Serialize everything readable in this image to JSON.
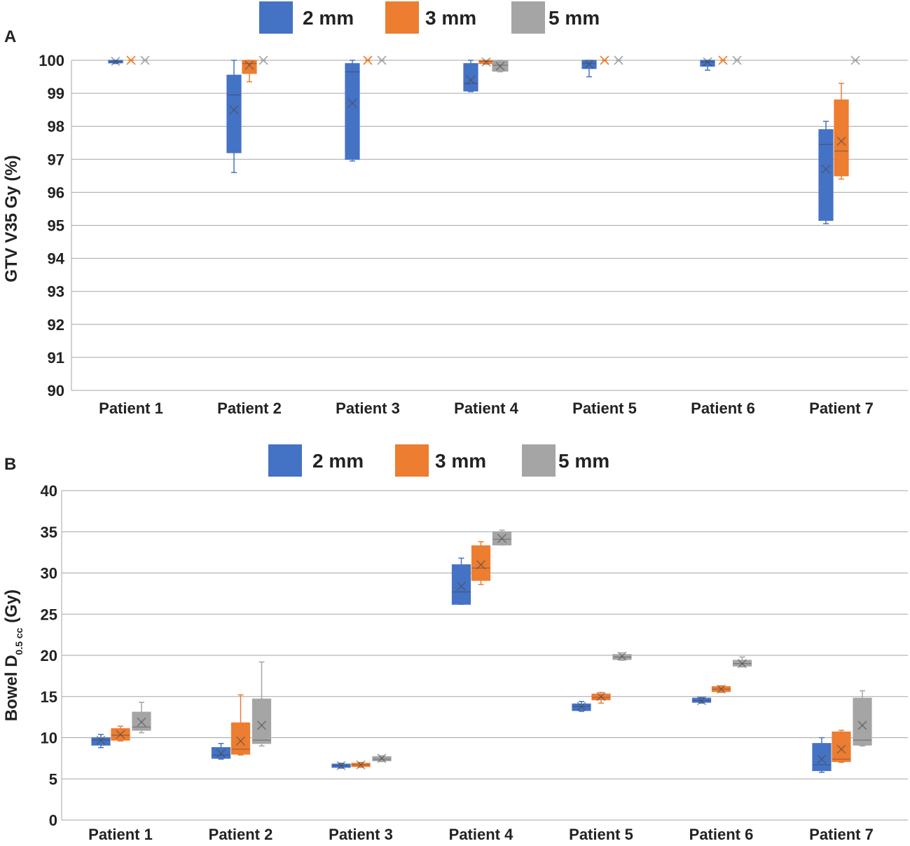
{
  "chart_data": [
    {
      "type": "box",
      "panel_label": "A",
      "ylabel": "GTV V35 Gy (%)",
      "xlabel": "",
      "ylim": [
        90,
        100
      ],
      "yticks": [
        90,
        91,
        92,
        93,
        94,
        95,
        96,
        97,
        98,
        99,
        100
      ],
      "grid": true,
      "legend_position": "top-center",
      "categories": [
        "Patient 1",
        "Patient 2",
        "Patient 3",
        "Patient 4",
        "Patient 5",
        "Patient 6",
        "Patient 7"
      ],
      "series": [
        {
          "name": "2 mm",
          "color": "#4472C4",
          "boxes": [
            {
              "min": 99.9,
              "q1": 99.92,
              "median": 99.96,
              "q3": 100.0,
              "max": 100.0,
              "mean": 99.97
            },
            {
              "min": 96.6,
              "q1": 97.2,
              "median": 98.95,
              "q3": 99.55,
              "max": 100.0,
              "mean": 98.5
            },
            {
              "min": 96.95,
              "q1": 97.0,
              "median": 99.65,
              "q3": 99.9,
              "max": 100.0,
              "mean": 98.7
            },
            {
              "min": 99.05,
              "q1": 99.07,
              "median": 99.3,
              "q3": 99.9,
              "max": 100.0,
              "mean": 99.4
            },
            {
              "min": 99.5,
              "q1": 99.75,
              "median": 99.9,
              "q3": 100.0,
              "max": 100.0,
              "mean": 99.88
            },
            {
              "min": 99.7,
              "q1": 99.82,
              "median": 99.95,
              "q3": 100.0,
              "max": 100.0,
              "mean": 99.95
            },
            {
              "min": 95.05,
              "q1": 95.15,
              "median": 97.45,
              "q3": 97.9,
              "max": 98.15,
              "mean": 96.7
            }
          ]
        },
        {
          "name": "3 mm",
          "color": "#ED7D31",
          "boxes": [
            {
              "min": 100.0,
              "q1": 100.0,
              "median": 100.0,
              "q3": 100.0,
              "max": 100.0,
              "mean": 100.0
            },
            {
              "min": 99.35,
              "q1": 99.6,
              "median": 99.9,
              "q3": 100.0,
              "max": 100.0,
              "mean": 99.85
            },
            {
              "min": 100.0,
              "q1": 100.0,
              "median": 100.0,
              "q3": 100.0,
              "max": 100.0,
              "mean": 100.0
            },
            {
              "min": 99.88,
              "q1": 99.9,
              "median": 99.97,
              "q3": 100.0,
              "max": 100.0,
              "mean": 99.95
            },
            {
              "min": 100.0,
              "q1": 100.0,
              "median": 100.0,
              "q3": 100.0,
              "max": 100.0,
              "mean": 100.0
            },
            {
              "min": 100.0,
              "q1": 100.0,
              "median": 100.0,
              "q3": 100.0,
              "max": 100.0,
              "mean": 100.0
            },
            {
              "min": 96.4,
              "q1": 96.5,
              "median": 97.25,
              "q3": 98.8,
              "max": 99.3,
              "mean": 97.55
            }
          ]
        },
        {
          "name": "5 mm",
          "color": "#A5A5A5",
          "boxes": [
            {
              "min": 100.0,
              "q1": 100.0,
              "median": 100.0,
              "q3": 100.0,
              "max": 100.0,
              "mean": 100.0
            },
            {
              "min": 100.0,
              "q1": 100.0,
              "median": 100.0,
              "q3": 100.0,
              "max": 100.0,
              "mean": 100.0
            },
            {
              "min": 100.0,
              "q1": 100.0,
              "median": 100.0,
              "q3": 100.0,
              "max": 100.0,
              "mean": 100.0
            },
            {
              "min": 99.65,
              "q1": 99.67,
              "median": 99.85,
              "q3": 99.98,
              "max": 100.0,
              "mean": 99.82
            },
            {
              "min": 100.0,
              "q1": 100.0,
              "median": 100.0,
              "q3": 100.0,
              "max": 100.0,
              "mean": 100.0
            },
            {
              "min": 100.0,
              "q1": 100.0,
              "median": 100.0,
              "q3": 100.0,
              "max": 100.0,
              "mean": 100.0
            },
            {
              "min": 100.0,
              "q1": 100.0,
              "median": 100.0,
              "q3": 100.0,
              "max": 100.0,
              "mean": 100.0
            }
          ]
        }
      ]
    },
    {
      "type": "box",
      "panel_label": "B",
      "ylabel_main": "Bowel D",
      "ylabel_sub": "0.5 cc",
      "ylabel_unit": " (Gy)",
      "xlabel": "",
      "ylim": [
        0,
        40
      ],
      "yticks": [
        0,
        5,
        10,
        15,
        20,
        25,
        30,
        35,
        40
      ],
      "grid": true,
      "legend_position": "top-center",
      "categories": [
        "Patient 1",
        "Patient 2",
        "Patient 3",
        "Patient 4",
        "Patient 5",
        "Patient 6",
        "Patient 7"
      ],
      "series": [
        {
          "name": "2 mm",
          "color": "#4472C4",
          "boxes": [
            {
              "min": 8.8,
              "q1": 9.1,
              "median": 9.7,
              "q3": 10.0,
              "max": 10.4,
              "mean": 9.7
            },
            {
              "min": 7.4,
              "q1": 7.5,
              "median": 7.9,
              "q3": 8.8,
              "max": 9.3,
              "mean": 8.1
            },
            {
              "min": 6.3,
              "q1": 6.4,
              "median": 6.6,
              "q3": 6.8,
              "max": 6.9,
              "mean": 6.6
            },
            {
              "min": 26.2,
              "q1": 26.2,
              "median": 27.7,
              "q3": 31.0,
              "max": 31.8,
              "mean": 28.4
            },
            {
              "min": 13.2,
              "q1": 13.3,
              "median": 13.8,
              "q3": 14.1,
              "max": 14.4,
              "mean": 13.8
            },
            {
              "min": 14.2,
              "q1": 14.3,
              "median": 14.5,
              "q3": 14.8,
              "max": 14.9,
              "mean": 14.5
            },
            {
              "min": 5.8,
              "q1": 6.0,
              "median": 6.7,
              "q3": 9.3,
              "max": 10.0,
              "mean": 7.4
            }
          ]
        },
        {
          "name": "3 mm",
          "color": "#ED7D31",
          "boxes": [
            {
              "min": 9.6,
              "q1": 9.7,
              "median": 10.3,
              "q3": 11.1,
              "max": 11.4,
              "mean": 10.4
            },
            {
              "min": 7.9,
              "q1": 8.0,
              "median": 8.6,
              "q3": 11.8,
              "max": 15.2,
              "mean": 9.6
            },
            {
              "min": 6.4,
              "q1": 6.5,
              "median": 6.7,
              "q3": 6.9,
              "max": 7.0,
              "mean": 6.7
            },
            {
              "min": 28.6,
              "q1": 29.1,
              "median": 30.6,
              "q3": 33.3,
              "max": 33.8,
              "mean": 31.0
            },
            {
              "min": 14.2,
              "q1": 14.6,
              "median": 14.9,
              "q3": 15.3,
              "max": 15.5,
              "mean": 15.0
            },
            {
              "min": 15.5,
              "q1": 15.6,
              "median": 15.9,
              "q3": 16.2,
              "max": 16.3,
              "mean": 15.9
            },
            {
              "min": 7.0,
              "q1": 7.1,
              "median": 7.4,
              "q3": 10.7,
              "max": 10.9,
              "mean": 8.6
            }
          ]
        },
        {
          "name": "5 mm",
          "color": "#A5A5A5",
          "boxes": [
            {
              "min": 10.6,
              "q1": 10.9,
              "median": 11.3,
              "q3": 13.1,
              "max": 14.3,
              "mean": 11.9
            },
            {
              "min": 9.0,
              "q1": 9.3,
              "median": 9.7,
              "q3": 14.7,
              "max": 19.2,
              "mean": 11.5
            },
            {
              "min": 7.1,
              "q1": 7.2,
              "median": 7.4,
              "q3": 7.7,
              "max": 7.8,
              "mean": 7.5
            },
            {
              "min": 33.4,
              "q1": 33.4,
              "median": 34.1,
              "q3": 35.0,
              "max": 35.2,
              "mean": 34.2
            },
            {
              "min": 19.4,
              "q1": 19.5,
              "median": 19.8,
              "q3": 20.1,
              "max": 20.3,
              "mean": 19.9
            },
            {
              "min": 18.6,
              "q1": 18.7,
              "median": 19.0,
              "q3": 19.4,
              "max": 19.8,
              "mean": 19.0
            },
            {
              "min": 9.0,
              "q1": 9.1,
              "median": 9.7,
              "q3": 14.8,
              "max": 15.7,
              "mean": 11.5
            }
          ]
        }
      ]
    }
  ]
}
